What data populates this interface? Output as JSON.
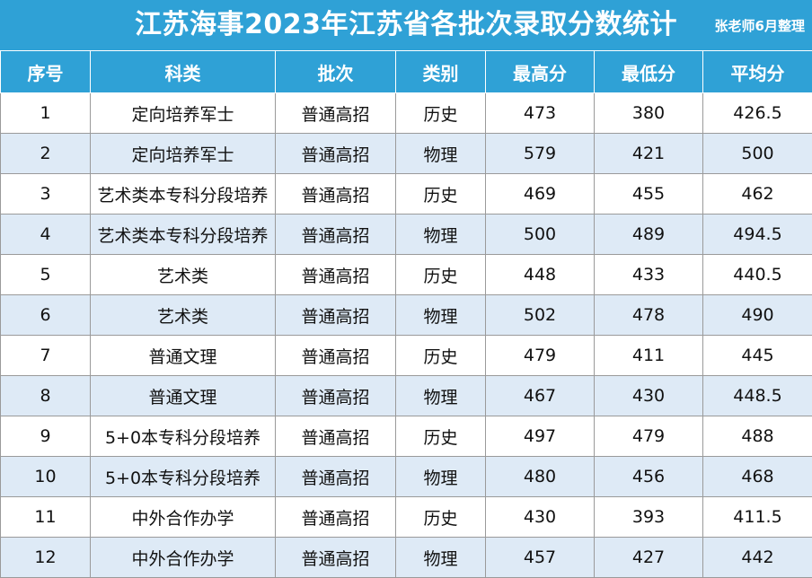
{
  "header": {
    "title": "江苏海事2023年江苏省各批次录取分数统计",
    "author": "张老师6月整理"
  },
  "table": {
    "columns": [
      "序号",
      "科类",
      "批次",
      "类别",
      "最高分",
      "最低分",
      "平均分"
    ],
    "rows": [
      [
        "1",
        "定向培养军士",
        "普通高招",
        "历史",
        "473",
        "380",
        "426.5"
      ],
      [
        "2",
        "定向培养军士",
        "普通高招",
        "物理",
        "579",
        "421",
        "500"
      ],
      [
        "3",
        "艺术类本专科分段培养",
        "普通高招",
        "历史",
        "469",
        "455",
        "462"
      ],
      [
        "4",
        "艺术类本专科分段培养",
        "普通高招",
        "物理",
        "500",
        "489",
        "494.5"
      ],
      [
        "5",
        "艺术类",
        "普通高招",
        "历史",
        "448",
        "433",
        "440.5"
      ],
      [
        "6",
        "艺术类",
        "普通高招",
        "物理",
        "502",
        "478",
        "490"
      ],
      [
        "7",
        "普通文理",
        "普通高招",
        "历史",
        "479",
        "411",
        "445"
      ],
      [
        "8",
        "普通文理",
        "普通高招",
        "物理",
        "467",
        "430",
        "448.5"
      ],
      [
        "9",
        "5+0本专科分段培养",
        "普通高招",
        "历史",
        "497",
        "479",
        "488"
      ],
      [
        "10",
        "5+0本专科分段培养",
        "普通高招",
        "物理",
        "480",
        "456",
        "468"
      ],
      [
        "11",
        "中外合作办学",
        "普通高招",
        "历史",
        "430",
        "393",
        "411.5"
      ],
      [
        "12",
        "中外合作办学",
        "普通高招",
        "物理",
        "457",
        "427",
        "442"
      ]
    ]
  },
  "colors": {
    "header_blue": "#2fa1d6",
    "stripe_blue": "#deeaf6"
  }
}
